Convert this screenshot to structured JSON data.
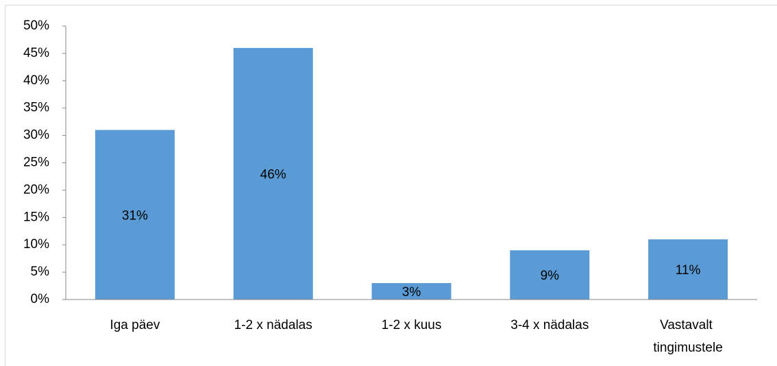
{
  "chart_data": {
    "type": "bar",
    "categories": [
      "Iga päev",
      "1-2 x nädalas",
      "1-2 x kuus",
      "3-4 x nädalas",
      "Vastavalt tingimustele"
    ],
    "values": [
      31,
      46,
      3,
      9,
      11
    ],
    "value_labels": [
      "31%",
      "46%",
      "3%",
      "9%",
      "11%"
    ],
    "color": "#5b9bd5",
    "ylim": [
      0,
      50
    ],
    "yticks": [
      {
        "value": 0,
        "label": "0%"
      },
      {
        "value": 5,
        "label": "5%"
      },
      {
        "value": 10,
        "label": "10%"
      },
      {
        "value": 15,
        "label": "15%"
      },
      {
        "value": 20,
        "label": "20%"
      },
      {
        "value": 25,
        "label": "25%"
      },
      {
        "value": 30,
        "label": "30%"
      },
      {
        "value": 35,
        "label": "35%"
      },
      {
        "value": 40,
        "label": "40%"
      },
      {
        "value": 45,
        "label": "45%"
      },
      {
        "value": 50,
        "label": "50%"
      }
    ],
    "grid": false
  }
}
